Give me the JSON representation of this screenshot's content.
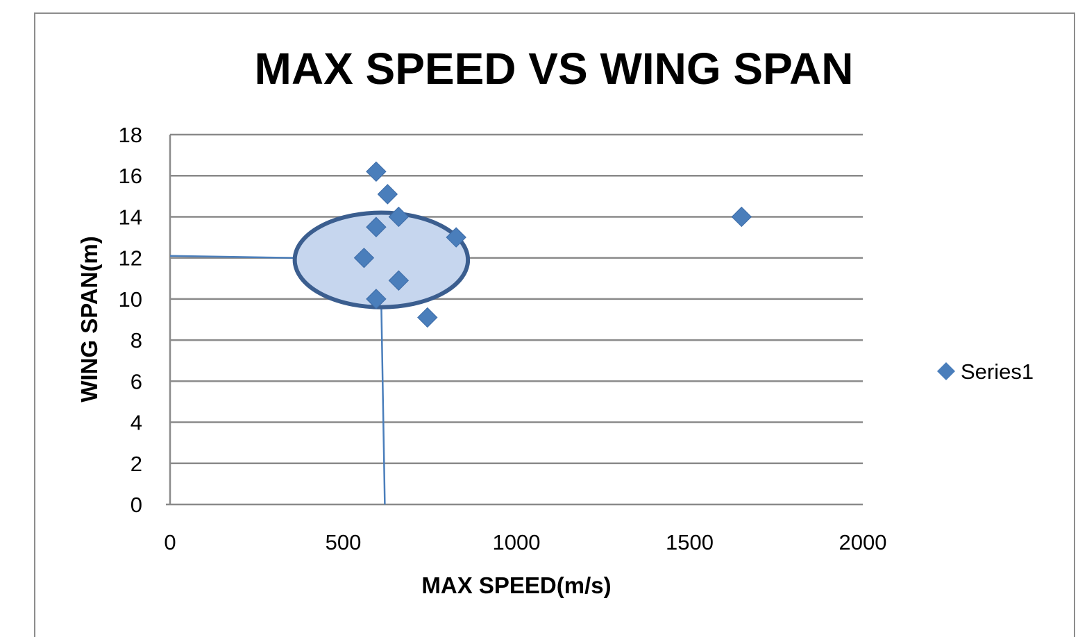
{
  "chart_data": {
    "type": "scatter",
    "title": "MAX SPEED VS WING SPAN",
    "xlabel": "MAX SPEED(m/s)",
    "ylabel": "WING SPAN(m)",
    "xlim": [
      0,
      2000
    ],
    "ylim": [
      0,
      18
    ],
    "xticks": [
      0,
      500,
      1000,
      1500,
      2000
    ],
    "yticks": [
      0,
      2,
      4,
      6,
      8,
      10,
      12,
      14,
      16,
      18
    ],
    "grid": "horizontal",
    "legend_position": "right",
    "series": [
      {
        "name": "Series1",
        "color": "#4a7ebb",
        "marker": "diamond",
        "points": [
          {
            "x": 595,
            "y": 16.2
          },
          {
            "x": 628,
            "y": 15.1
          },
          {
            "x": 660,
            "y": 14.0
          },
          {
            "x": 595,
            "y": 13.5
          },
          {
            "x": 826,
            "y": 13.0
          },
          {
            "x": 560,
            "y": 12.0
          },
          {
            "x": 660,
            "y": 10.9
          },
          {
            "x": 595,
            "y": 10.0
          },
          {
            "x": 743,
            "y": 9.1
          },
          {
            "x": 1650,
            "y": 14.0
          }
        ]
      }
    ],
    "annotations": {
      "highlight_ellipse": {
        "center_x": 610,
        "center_y": 11.9,
        "radius_x": 250,
        "radius_y": 2.3,
        "fill": "#c6d6ee",
        "stroke": "#3b5e8f"
      },
      "guide_lines": [
        {
          "from": {
            "x": 0,
            "y": 12.1
          },
          "to": {
            "x": 355,
            "y": 12.0
          }
        },
        {
          "from": {
            "x": 610,
            "y": 9.6
          },
          "to": {
            "x": 620,
            "y": 0
          }
        }
      ]
    }
  }
}
